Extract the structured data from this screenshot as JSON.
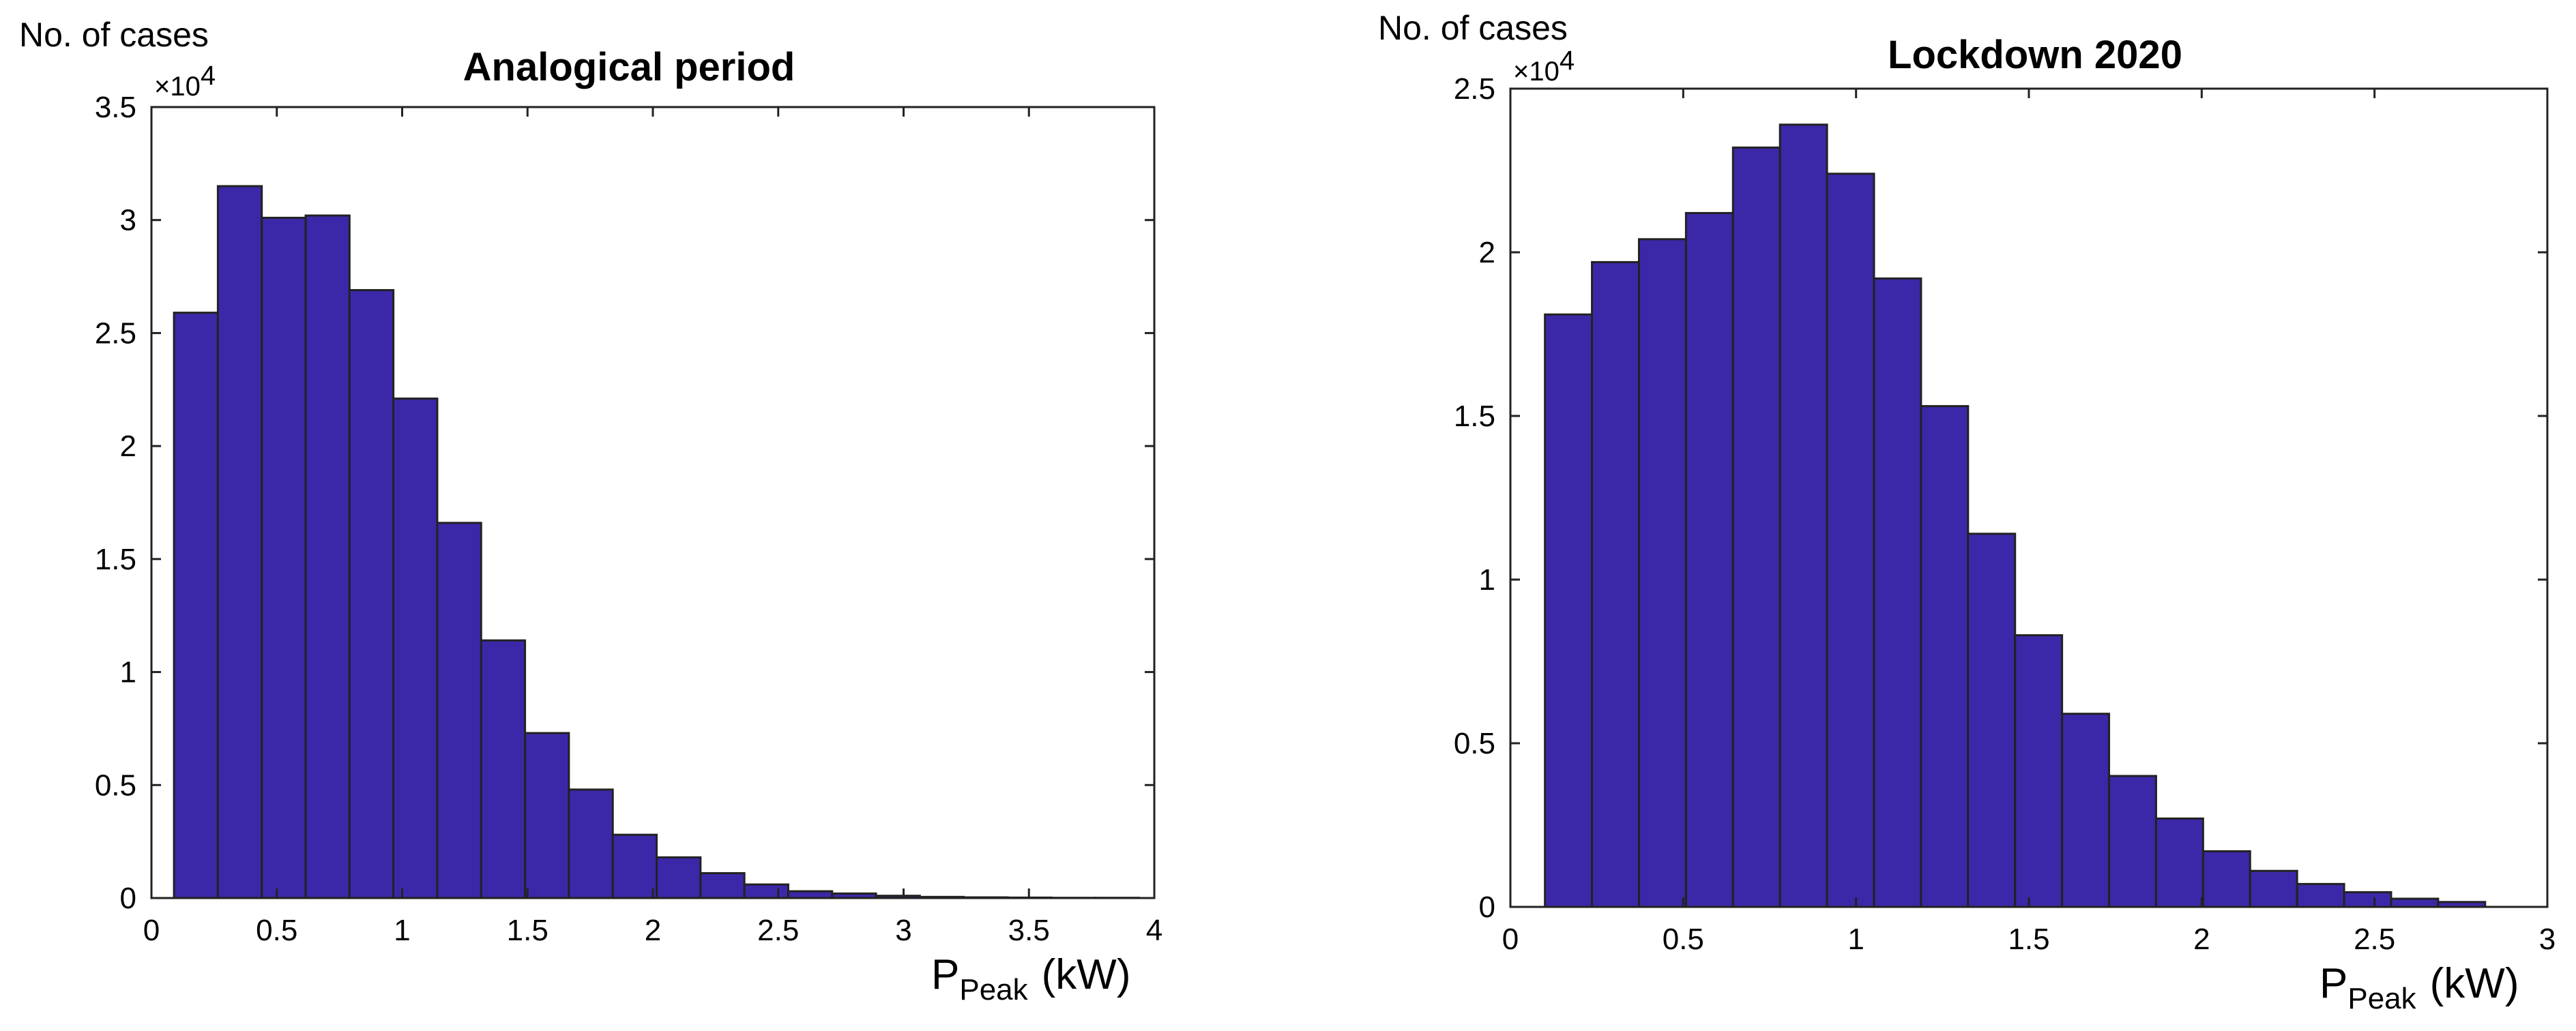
{
  "chart_data": [
    {
      "type": "bar",
      "title": "Analogical period",
      "ylabel": "No. of cases",
      "y_multiplier": "×10",
      "y_multiplier_exp": "4",
      "xlabel_main": "P",
      "xlabel_sub": "Peak",
      "xlabel_unit": "(kW)",
      "xlim": [
        0,
        4
      ],
      "ylim": [
        0,
        3.5
      ],
      "xticks": [
        0,
        0.5,
        1,
        1.5,
        2,
        2.5,
        3,
        3.5,
        4
      ],
      "xtick_labels": [
        "0",
        "0.5",
        "1",
        "1.5",
        "2",
        "2.5",
        "3",
        "3.5",
        "4"
      ],
      "yticks": [
        0,
        0.5,
        1,
        1.5,
        2,
        2.5,
        3,
        3.5
      ],
      "ytick_labels": [
        "0",
        "0.5",
        "1",
        "1.5",
        "2",
        "2.5",
        "3",
        "3.5"
      ],
      "bin_start": 0.09,
      "bin_width": 0.175,
      "bar_color": "#3b28a8",
      "values": [
        2.59,
        3.15,
        3.01,
        3.02,
        2.69,
        2.21,
        1.66,
        1.14,
        0.73,
        0.48,
        0.28,
        0.18,
        0.11,
        0.06,
        0.03,
        0.02,
        0.01,
        0.005,
        0.003,
        0.002,
        0.001,
        0.001
      ]
    },
    {
      "type": "bar",
      "title": "Lockdown 2020",
      "ylabel": "No. of cases",
      "y_multiplier": "×10",
      "y_multiplier_exp": "4",
      "xlabel_main": "P",
      "xlabel_sub": "Peak",
      "xlabel_unit": "(kW)",
      "xlim": [
        0,
        3
      ],
      "ylim": [
        0,
        2.5
      ],
      "xticks": [
        0,
        0.5,
        1,
        1.5,
        2,
        2.5,
        3
      ],
      "xtick_labels": [
        "0",
        "0.5",
        "1",
        "1.5",
        "2",
        "2.5",
        "3"
      ],
      "yticks": [
        0,
        0.5,
        1,
        1.5,
        2,
        2.5
      ],
      "ytick_labels": [
        "0",
        "0.5",
        "1",
        "1.5",
        "2",
        "2.5"
      ],
      "bin_start": 0.1,
      "bin_width": 0.136,
      "bar_color": "#3b28a8",
      "values": [
        1.81,
        1.97,
        2.04,
        2.12,
        2.32,
        2.39,
        2.24,
        1.92,
        1.53,
        1.14,
        0.83,
        0.59,
        0.4,
        0.27,
        0.17,
        0.11,
        0.07,
        0.045,
        0.025,
        0.015
      ]
    }
  ]
}
